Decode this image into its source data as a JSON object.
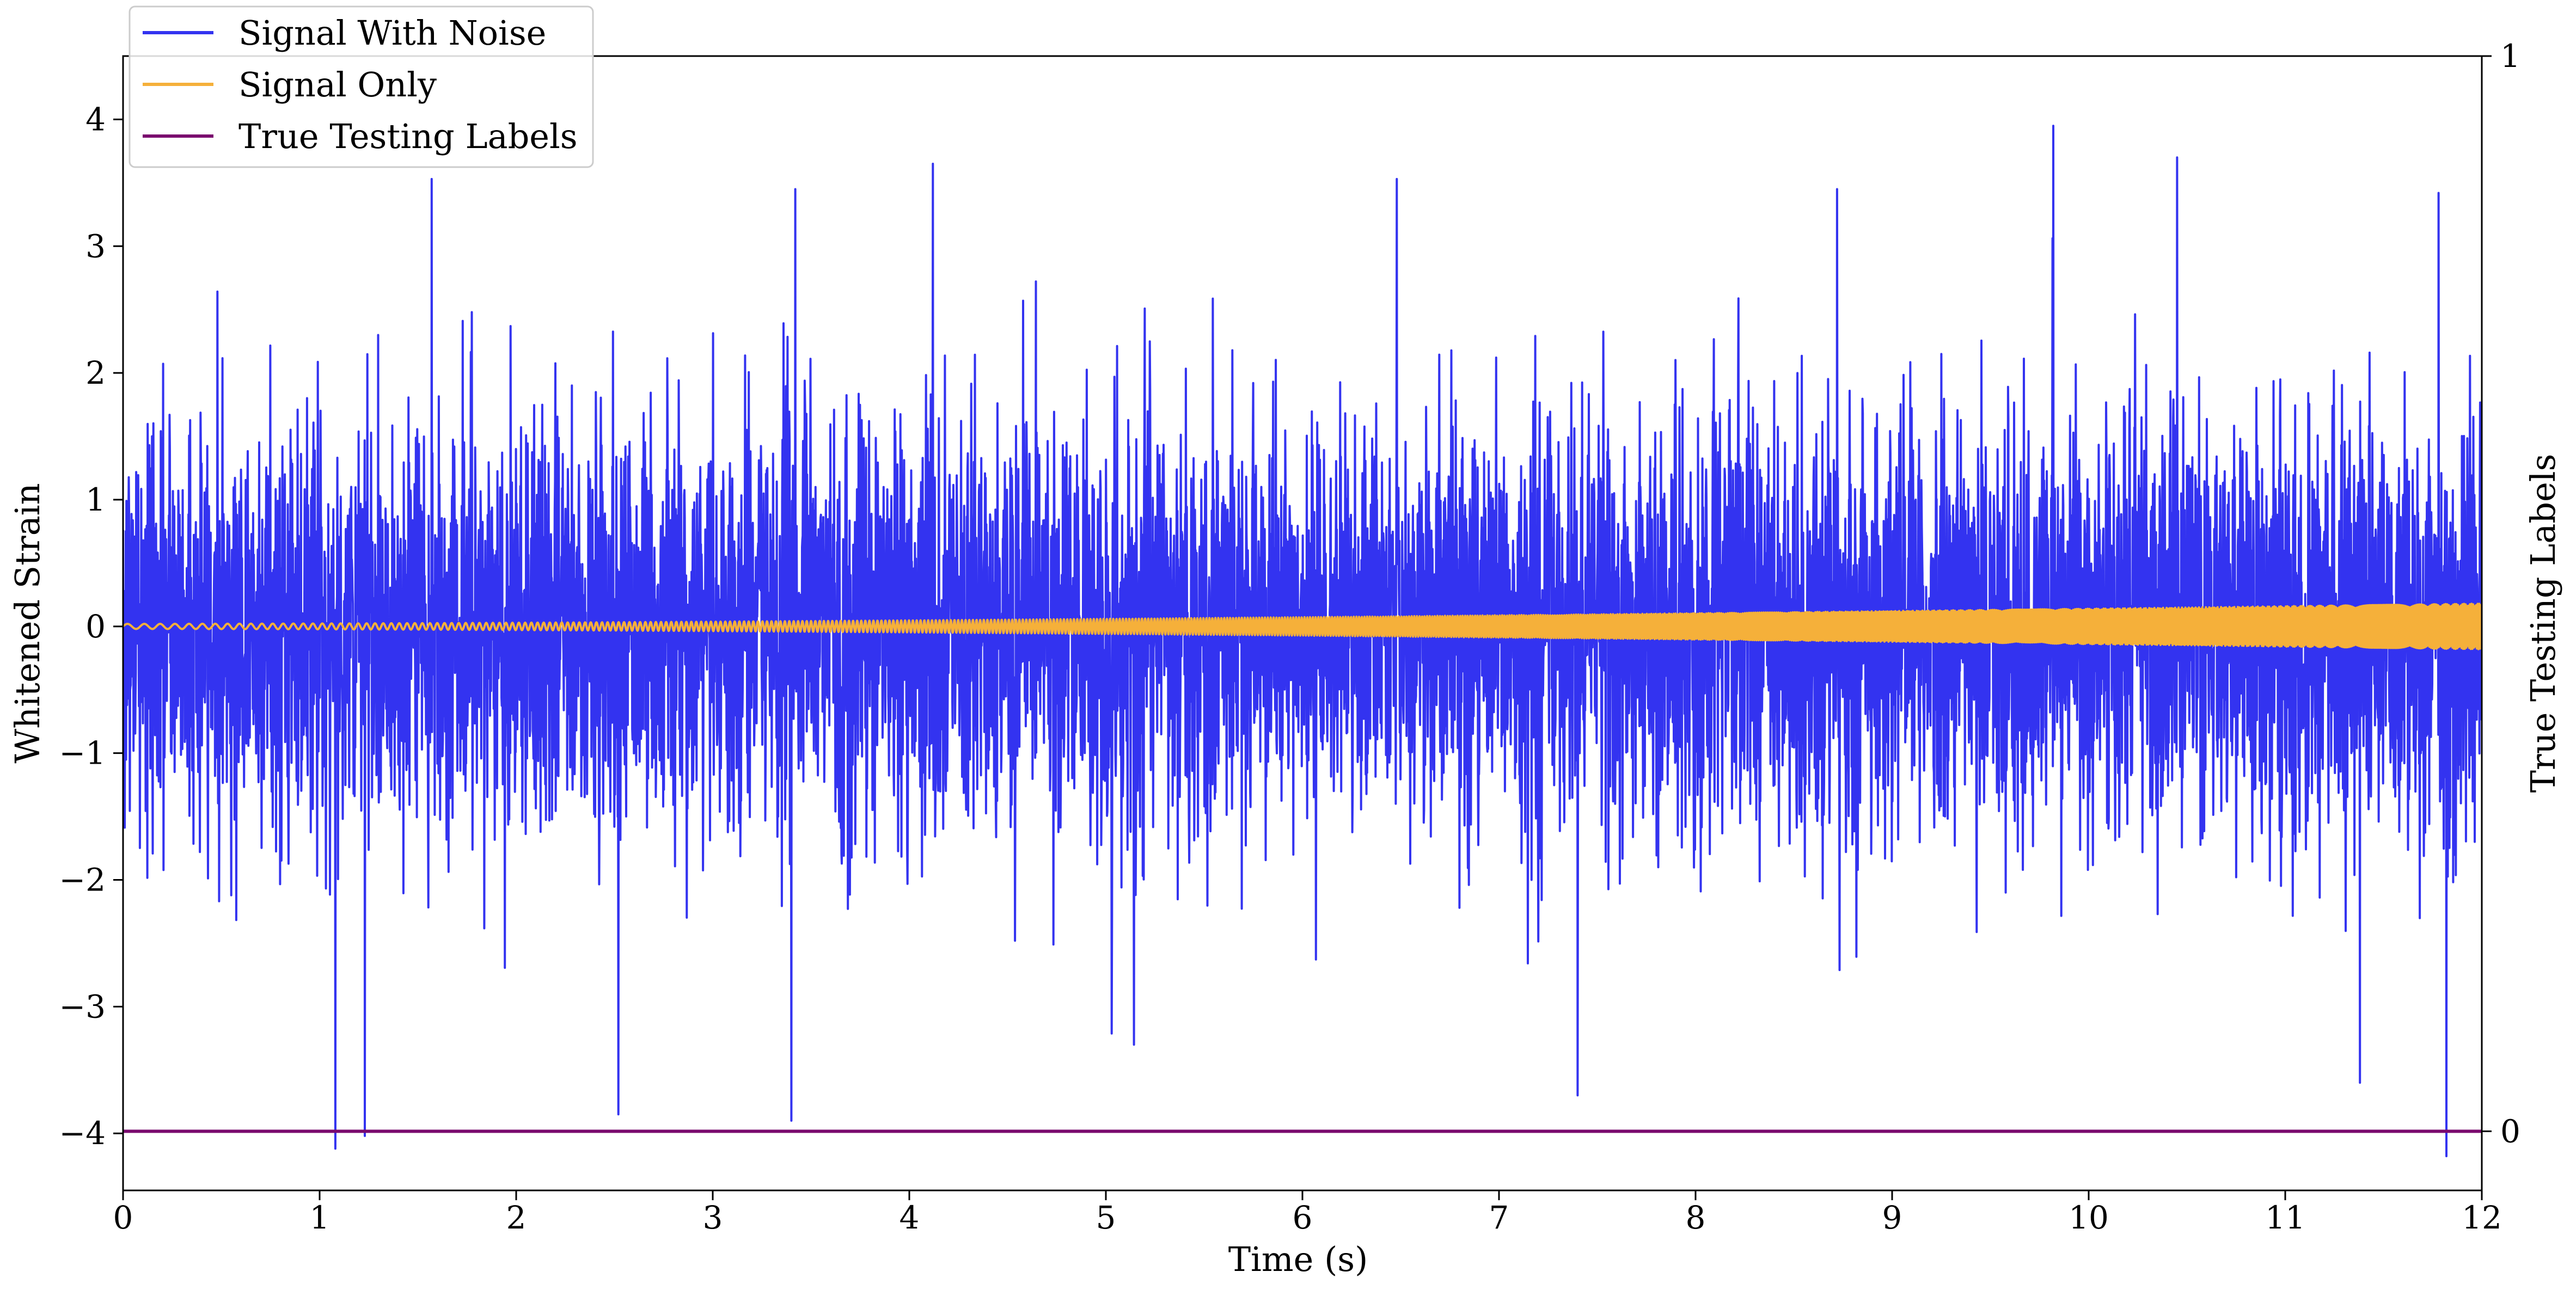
{
  "chart_data": {
    "type": "line",
    "xlabel": "Time (s)",
    "ylabel": "Whitened Strain",
    "y2label": "True Testing Labels",
    "xlim": [
      0,
      12
    ],
    "ylim": [
      -4.45,
      4.5
    ],
    "y2lim": [
      -0.055,
      1.0
    ],
    "xticks": [
      0,
      1,
      2,
      3,
      4,
      5,
      6,
      7,
      8,
      9,
      10,
      11,
      12
    ],
    "yticks": [
      4,
      3,
      2,
      1,
      0,
      -1,
      -2,
      -3,
      -4
    ],
    "ytick_labels": [
      "4",
      "3",
      "2",
      "1",
      "0",
      "−1",
      "−2",
      "−3",
      "−4"
    ],
    "y2ticks": [
      1,
      0
    ],
    "y2tick_labels": [
      "1",
      "0"
    ],
    "grid": false,
    "legend_position": "top-left",
    "series": [
      {
        "name": "Signal With Noise",
        "axis": "left",
        "color": "#3333f0",
        "description_kind": "gaussian-noise",
        "std": 0.82,
        "x_range": [
          0,
          12
        ],
        "extremes": [
          {
            "x": 9.82,
            "y": 3.95
          },
          {
            "x": 4.12,
            "y": 3.65
          },
          {
            "x": 1.57,
            "y": 3.53
          },
          {
            "x": 6.48,
            "y": 3.53
          },
          {
            "x": 10.45,
            "y": 3.7
          },
          {
            "x": 3.42,
            "y": 3.45
          },
          {
            "x": 8.72,
            "y": 3.45
          },
          {
            "x": 11.78,
            "y": 3.42
          },
          {
            "x": 1.08,
            "y": -4.12
          },
          {
            "x": 1.23,
            "y": -4.02
          },
          {
            "x": 11.82,
            "y": -4.18
          },
          {
            "x": 3.4,
            "y": -3.9
          },
          {
            "x": 2.52,
            "y": -3.85
          },
          {
            "x": 7.4,
            "y": -3.7
          },
          {
            "x": 11.38,
            "y": -3.6
          }
        ]
      },
      {
        "name": "Signal Only",
        "axis": "left",
        "color": "#f5b03a",
        "description_kind": "chirp",
        "amp_start": 0.02,
        "amp_end": 0.18,
        "freq_start_hz": 11,
        "freq_end_hz": 130,
        "x_range": [
          0,
          12
        ]
      },
      {
        "name": "True Testing Labels",
        "axis": "right",
        "color": "#7a0a6e",
        "x": [
          0,
          12
        ],
        "y": [
          0,
          0
        ]
      }
    ]
  }
}
